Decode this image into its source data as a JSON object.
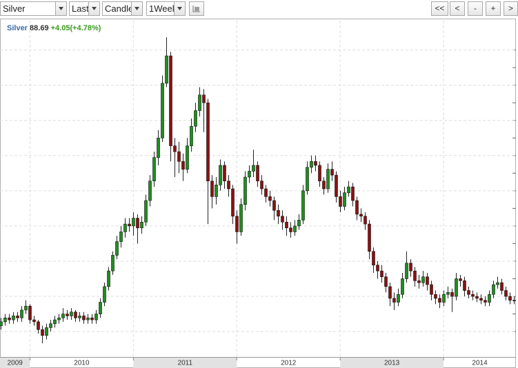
{
  "toolbar": {
    "symbol": "Silver",
    "price_field": "Last",
    "chart_style": "Candle",
    "interval": "1Week",
    "nav_buttons": [
      "<<",
      "<",
      "-",
      "+",
      ">"
    ]
  },
  "chart_data": {
    "type": "candlestick",
    "quote": {
      "name": "Silver",
      "price": 88.69,
      "change": "+4.05(+4.78%)"
    },
    "x": [
      2009.72,
      2009.76,
      2009.8,
      2009.84,
      2009.88,
      2009.92,
      2009.96,
      2010.0,
      2010.04,
      2010.08,
      2010.12,
      2010.16,
      2010.2,
      2010.24,
      2010.28,
      2010.32,
      2010.36,
      2010.4,
      2010.44,
      2010.48,
      2010.52,
      2010.56,
      2010.6,
      2010.64,
      2010.68,
      2010.72,
      2010.76,
      2010.8,
      2010.84,
      2010.88,
      2010.92,
      2010.96,
      2011.0,
      2011.04,
      2011.08,
      2011.12,
      2011.16,
      2011.2,
      2011.24,
      2011.28,
      2011.32,
      2011.36,
      2011.4,
      2011.44,
      2011.48,
      2011.52,
      2011.56,
      2011.6,
      2011.64,
      2011.68,
      2011.72,
      2011.76,
      2011.8,
      2011.84,
      2011.88,
      2011.92,
      2011.96,
      2012.0,
      2012.04,
      2012.08,
      2012.12,
      2012.16,
      2012.2,
      2012.24,
      2012.28,
      2012.32,
      2012.36,
      2012.4,
      2012.44,
      2012.48,
      2012.52,
      2012.56,
      2012.6,
      2012.64,
      2012.68,
      2012.72,
      2012.76,
      2012.8,
      2012.84,
      2012.88,
      2012.92,
      2012.96,
      2013.0,
      2013.04,
      2013.08,
      2013.12,
      2013.16,
      2013.2,
      2013.24,
      2013.28,
      2013.32,
      2013.36,
      2013.4,
      2013.44,
      2013.48,
      2013.52,
      2013.56,
      2013.6,
      2013.64,
      2013.68,
      2013.72,
      2013.76,
      2013.8,
      2013.84,
      2013.88,
      2013.92,
      2013.96,
      2014.0,
      2014.04,
      2014.08,
      2014.12,
      2014.16,
      2014.2,
      2014.24,
      2014.28,
      2014.32,
      2014.36,
      2014.4,
      2014.44,
      2014.48,
      2014.52,
      2014.56,
      2014.6,
      2014.64,
      2014.68
    ],
    "series": [
      {
        "name": "Silver",
        "up_color": "#1f8f1f",
        "down_color": "#8b1111",
        "open": [
          76,
          78,
          80,
          79,
          81,
          80,
          84,
          86,
          79,
          78,
          74,
          71,
          75,
          77,
          79,
          80,
          82,
          81,
          83,
          80,
          81,
          79,
          80,
          79,
          82,
          88,
          96,
          104,
          112,
          119,
          124,
          128,
          127,
          131,
          126,
          129,
          140,
          150,
          162,
          172,
          200,
          214,
          168,
          165,
          160,
          156,
          168,
          178,
          186,
          194,
          190,
          150,
          142,
          148,
          158,
          150,
          146,
          132,
          124,
          138,
          152,
          155,
          158,
          150,
          146,
          142,
          140,
          135,
          132,
          129,
          126,
          124,
          127,
          130,
          145,
          157,
          160,
          158,
          150,
          146,
          156,
          153,
          142,
          137,
          144,
          147,
          140,
          133,
          132,
          128,
          114,
          107,
          104,
          101,
          96,
          90,
          88,
          92,
          100,
          108,
          104,
          99,
          98,
          101,
          97,
          92,
          90,
          88,
          92,
          93,
          91,
          100,
          99,
          94,
          92,
          91,
          90,
          89,
          88,
          92,
          97,
          98,
          94,
          91,
          89
        ],
        "high": [
          80,
          82,
          82,
          83,
          83,
          86,
          89,
          87,
          81,
          79,
          76,
          77,
          79,
          81,
          82,
          85,
          84,
          85,
          84,
          83,
          83,
          82,
          82,
          84,
          90,
          98,
          106,
          114,
          122,
          127,
          131,
          131,
          134,
          133,
          132,
          143,
          153,
          165,
          176,
          204,
          223.5,
          216,
          172,
          170,
          164,
          172,
          182,
          190,
          198,
          197,
          192,
          153,
          152,
          161,
          160,
          153,
          148,
          135,
          141,
          155,
          158,
          166,
          160,
          153,
          148,
          145,
          142,
          138,
          135,
          132,
          129,
          130,
          133,
          148,
          160,
          163,
          163,
          160,
          152,
          159,
          160,
          155,
          145,
          147,
          150,
          149,
          142,
          136,
          134,
          130,
          116,
          109,
          107,
          103,
          98,
          93,
          95,
          103,
          114,
          110,
          106,
          102,
          104,
          103,
          99,
          94,
          92,
          94,
          96,
          95,
          103,
          102,
          101,
          96,
          94,
          93,
          92,
          91,
          94,
          99,
          101,
          100,
          96,
          93,
          91
        ],
        "low": [
          74,
          76,
          77,
          77,
          78,
          78,
          82,
          77,
          76,
          72,
          67,
          69,
          73,
          75,
          77,
          78,
          79,
          79,
          78,
          78,
          77,
          77,
          77,
          77,
          80,
          86,
          94,
          102,
          110,
          116,
          121,
          124,
          122,
          118,
          123,
          127,
          137,
          147,
          158,
          170,
          198,
          160,
          152,
          154,
          150,
          154,
          165,
          175,
          183,
          175,
          128,
          136,
          138,
          145,
          146,
          142,
          128,
          118,
          122,
          135,
          149,
          152,
          147,
          143,
          139,
          137,
          130,
          128,
          125,
          122,
          121,
          122,
          125,
          128,
          143,
          154,
          155,
          147,
          143,
          144,
          150,
          139,
          134,
          135,
          142,
          137,
          130,
          129,
          125,
          110,
          103,
          100,
          98,
          93,
          86,
          84,
          86,
          90,
          98,
          101,
          96,
          95,
          96,
          94,
          89,
          87,
          85,
          86,
          90,
          83,
          89,
          96,
          91,
          90,
          89,
          88,
          87,
          86,
          86,
          90,
          95,
          92,
          89,
          87,
          87
        ],
        "close": [
          78,
          80,
          79,
          81,
          80,
          84,
          86,
          79,
          78,
          74,
          71,
          75,
          77,
          79,
          80,
          82,
          81,
          83,
          80,
          81,
          79,
          80,
          79,
          82,
          88,
          96,
          104,
          112,
          119,
          124,
          128,
          127,
          131,
          126,
          129,
          140,
          150,
          162,
          172,
          200,
          214,
          168,
          165,
          160,
          156,
          168,
          178,
          186,
          194,
          190,
          150,
          142,
          148,
          158,
          150,
          146,
          132,
          124,
          138,
          152,
          155,
          158,
          150,
          146,
          142,
          140,
          135,
          132,
          129,
          126,
          124,
          127,
          130,
          145,
          157,
          160,
          158,
          150,
          146,
          156,
          153,
          142,
          137,
          144,
          147,
          140,
          133,
          132,
          128,
          114,
          107,
          104,
          101,
          96,
          90,
          88,
          92,
          100,
          108,
          104,
          99,
          98,
          101,
          97,
          92,
          90,
          88,
          92,
          93,
          91,
          100,
          99,
          94,
          92,
          91,
          90,
          89,
          88,
          92,
          97,
          98,
          94,
          91,
          89,
          88.69
        ]
      }
    ],
    "xlim": [
      2009.71,
      2014.7
    ],
    "xticks": [
      2009,
      2010,
      2011,
      2012,
      2013,
      2014
    ],
    "ylim": [
      60,
      232
    ],
    "yticks": [
      73,
      82,
      91,
      100,
      109,
      118,
      127,
      136,
      145,
      154,
      163,
      172,
      181,
      190,
      199,
      208,
      217
    ],
    "grid": true
  }
}
